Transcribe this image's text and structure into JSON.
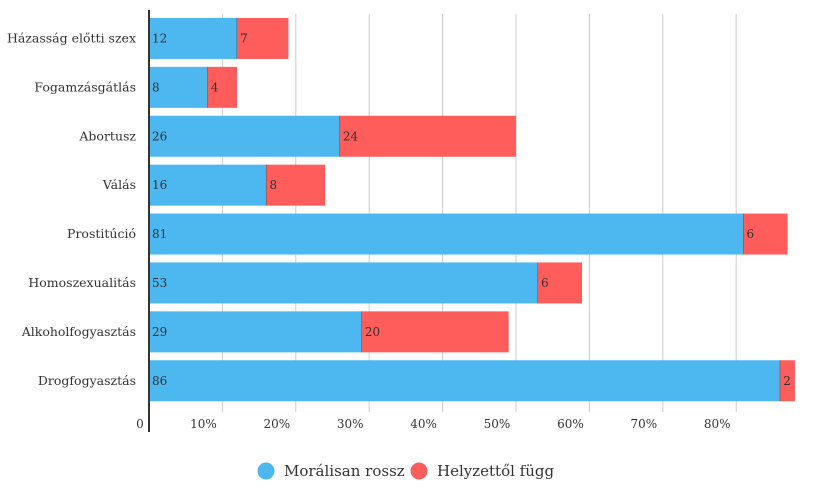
{
  "chart_data": {
    "type": "bar",
    "orientation": "horizontal",
    "stacked": true,
    "categories": [
      "Házasság előtti szex",
      "Fogamzásgátlás",
      "Abortusz",
      "Válás",
      "Prostitúció",
      "Homoszexualitás",
      "Alkoholfogyasztás",
      "Drogfogyasztás"
    ],
    "series": [
      {
        "name": "Morálisan rossz",
        "values": [
          12,
          8,
          26,
          16,
          81,
          53,
          29,
          86
        ],
        "color": "#4db8f0"
      },
      {
        "name": "Helyzettől függ",
        "values": [
          7,
          4,
          24,
          8,
          6,
          6,
          20,
          2
        ],
        "color": "#ff5c5c"
      }
    ],
    "xticks": [
      "0",
      "10%",
      "20%",
      "30%",
      "40%",
      "50%",
      "60%",
      "70%",
      "80%"
    ],
    "xlim": [
      0,
      88
    ],
    "grid": true,
    "legend_position": "bottom"
  }
}
